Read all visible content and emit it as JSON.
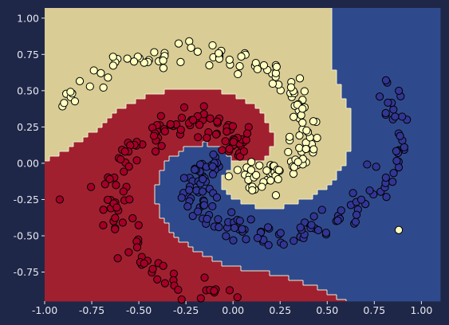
{
  "chart_data": {
    "type": "scatter",
    "title": "",
    "xlabel": "",
    "ylabel": "",
    "xlim": [
      -1.0,
      1.1
    ],
    "ylim": [
      -0.95,
      1.07
    ],
    "x_ticks": [
      "-1.00",
      "-0.75",
      "-0.50",
      "-0.25",
      "0.00",
      "0.25",
      "0.50",
      "0.75",
      "1.00"
    ],
    "y_ticks": [
      "1.00",
      "0.75",
      "0.50",
      "0.25",
      "0.00",
      "-0.25",
      "-0.50",
      "-0.75"
    ],
    "grid": false,
    "legend": "none",
    "background": {
      "type": "decision-regions",
      "classes": [
        "class-0",
        "class-1",
        "class-2"
      ],
      "region_colors": [
        "#2f4a8c",
        "#a12030",
        "#d9cc95"
      ]
    },
    "series": [
      {
        "class": "class-0",
        "color": "#313695",
        "shape": "spiral-arm",
        "points_approx": 150,
        "path_polar": {
          "r_start": 0.08,
          "r_end": 0.98,
          "theta_start_deg": 180,
          "theta_end_deg": 395
        }
      },
      {
        "class": "class-1",
        "color": "#a50026",
        "shape": "spiral-arm",
        "points_approx": 150,
        "path_polar": {
          "r_start": 0.08,
          "r_end": 0.98,
          "theta_start_deg": 60,
          "theta_end_deg": 275
        }
      },
      {
        "class": "class-2",
        "color": "#ffffbf",
        "shape": "spiral-arm",
        "points_approx": 150,
        "path_polar": {
          "r_start": 0.08,
          "r_end": 0.98,
          "theta_start_deg": -60,
          "theta_end_deg": 155
        }
      }
    ],
    "outliers": [
      {
        "class": "class-1",
        "x": -0.92,
        "y": -0.25
      },
      {
        "class": "class-2",
        "x": 0.88,
        "y": -0.46
      }
    ]
  },
  "colors": {
    "page_background": "#1f2748",
    "tick_text": "#e6e8f0",
    "marker_edge": "#000000"
  }
}
